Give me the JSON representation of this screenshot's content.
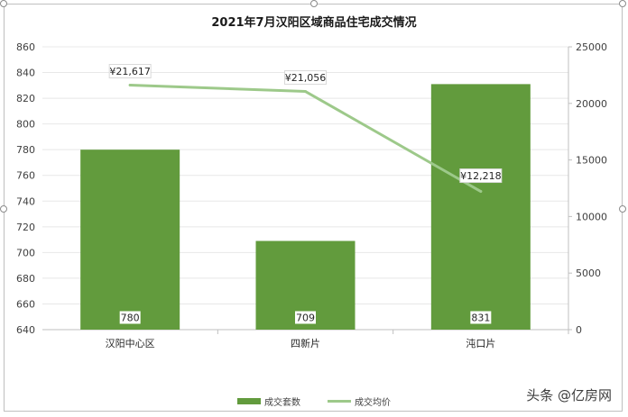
{
  "chart_data": {
    "type": "bar",
    "title": "2021年7月汉阳区域商品住宅成交情况",
    "categories": [
      "汉阳中心区",
      "四新片",
      "沌口片"
    ],
    "series": [
      {
        "name": "成交套数",
        "type": "bar",
        "axis": "left",
        "values": [
          780,
          709,
          831
        ],
        "value_labels": [
          "780",
          "709",
          "831"
        ],
        "color": "#629b3d"
      },
      {
        "name": "成交均价",
        "type": "line",
        "axis": "right",
        "values": [
          21617,
          21056,
          12218
        ],
        "value_labels": [
          "¥21,617",
          "¥21,056",
          "¥12,218"
        ],
        "color": "#9dc98a"
      }
    ],
    "y_left": {
      "min": 640,
      "max": 860,
      "ticks": [
        "640",
        "660",
        "680",
        "700",
        "720",
        "740",
        "760",
        "780",
        "800",
        "820",
        "840",
        "860"
      ]
    },
    "y_right": {
      "min": 0,
      "max": 25000,
      "ticks": [
        "0",
        "5000",
        "10000",
        "15000",
        "20000",
        "25000"
      ]
    },
    "grid": true,
    "legend_position": "bottom"
  },
  "watermark": "头条 @亿房网"
}
